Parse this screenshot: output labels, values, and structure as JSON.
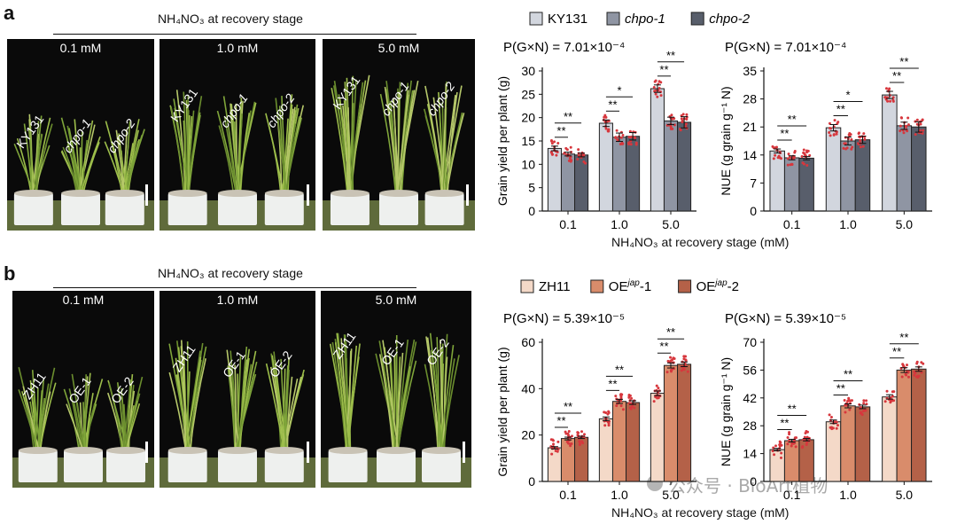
{
  "panels": [
    {
      "letter": "a",
      "header": "NH₄NO₃ at recovery stage",
      "photos": [
        {
          "concentration": "0.1 mM",
          "labels": [
            "KY131",
            "chpo-1",
            "chpo-2"
          ]
        },
        {
          "concentration": "1.0 mM",
          "labels": [
            "KY131",
            "chpo-1",
            "chpo-2"
          ]
        },
        {
          "concentration": "5.0 mM",
          "labels": [
            "KY131",
            "chpo-1",
            "chpo-2"
          ]
        }
      ],
      "legend": [
        "KY131",
        "chpo-1",
        "chpo-2"
      ],
      "legend_italic": [
        false,
        true,
        true
      ],
      "colors": [
        "#d2d6de",
        "#8f95a3",
        "#585e6b"
      ],
      "point_color": "#d7373d",
      "x_axis_label": "NH₄NO₃ at recovery stage (mM)"
    },
    {
      "letter": "b",
      "header": "NH₄NO₃ at recovery stage",
      "photos": [
        {
          "concentration": "0.1 mM",
          "labels": [
            "ZH11",
            "OE-1",
            "OE-2"
          ]
        },
        {
          "concentration": "1.0 mM",
          "labels": [
            "ZH11",
            "OE-1",
            "OE-2"
          ]
        },
        {
          "concentration": "5.0 mM",
          "labels": [
            "ZH11",
            "OE-1",
            "OE-2"
          ]
        }
      ],
      "legend": [
        "ZH11",
        "OE-1",
        "OE-2"
      ],
      "legend_italic": [
        false,
        false,
        false
      ],
      "legend_superscript": [
        "",
        "jap",
        "jap"
      ],
      "colors": [
        "#f4d9c8",
        "#d98c6b",
        "#b46148"
      ],
      "point_color": "#d7373d",
      "x_axis_label": "NH₄NO₃ at recovery stage (mM)"
    }
  ],
  "chart_data": [
    {
      "type": "bar",
      "panel": "a",
      "stat": "P(G×N) = 7.01×10⁻⁴",
      "ylabel": "Grain yield per plant (g)",
      "ylim": [
        0,
        30
      ],
      "yticks": [
        0,
        5,
        10,
        15,
        20,
        25,
        30
      ],
      "categories": [
        "0.1",
        "1.0",
        "5.0"
      ],
      "series": [
        {
          "name": "KY131",
          "values": [
            13.4,
            18.8,
            26.2
          ],
          "errors": [
            0.5,
            0.7,
            0.8
          ]
        },
        {
          "name": "chpo-1",
          "values": [
            12.2,
            15.8,
            19.3
          ],
          "errors": [
            0.4,
            0.9,
            0.8
          ]
        },
        {
          "name": "chpo-2",
          "values": [
            12.0,
            16.0,
            19.0
          ],
          "errors": [
            0.4,
            0.8,
            1.2
          ]
        }
      ],
      "significance": [
        "**",
        "**",
        "**",
        "*",
        "**",
        "**"
      ]
    },
    {
      "type": "bar",
      "panel": "a",
      "stat": "P(G×N) = 7.01×10⁻⁴",
      "ylabel": "NUE (g grain g⁻¹ N)",
      "ylim": [
        0,
        35
      ],
      "yticks": [
        0,
        7,
        14,
        21,
        28,
        35
      ],
      "categories": [
        "0.1",
        "1.0",
        "5.0"
      ],
      "series": [
        {
          "name": "KY131",
          "values": [
            15.0,
            20.8,
            29.0
          ],
          "errors": [
            0.5,
            0.8,
            0.9
          ]
        },
        {
          "name": "chpo-1",
          "values": [
            13.3,
            17.5,
            21.3
          ],
          "errors": [
            0.5,
            1.0,
            0.9
          ]
        },
        {
          "name": "chpo-2",
          "values": [
            13.2,
            17.8,
            21.0
          ],
          "errors": [
            0.4,
            0.9,
            1.3
          ]
        }
      ],
      "significance": [
        "**",
        "**",
        "**",
        "*",
        "**",
        "**"
      ]
    },
    {
      "type": "bar",
      "panel": "b",
      "stat": "P(G×N) = 5.39×10⁻⁵",
      "ylabel": "Grain yield per plant (g)",
      "ylim": [
        0,
        60
      ],
      "yticks": [
        0,
        20,
        40,
        60
      ],
      "categories": [
        "0.1",
        "1.0",
        "5.0"
      ],
      "series": [
        {
          "name": "ZH11",
          "values": [
            14.5,
            27.0,
            38.0
          ],
          "errors": [
            0.5,
            0.8,
            1.0
          ]
        },
        {
          "name": "OE-1",
          "values": [
            18.5,
            34.5,
            50.0
          ],
          "errors": [
            0.6,
            0.9,
            1.1
          ]
        },
        {
          "name": "OE-2",
          "values": [
            19.0,
            34.0,
            50.5
          ],
          "errors": [
            0.5,
            0.8,
            1.0
          ]
        }
      ],
      "significance": [
        "**",
        "**",
        "**",
        "**",
        "**",
        "**"
      ]
    },
    {
      "type": "bar",
      "panel": "b",
      "stat": "P(G×N) = 5.39×10⁻⁵",
      "ylabel": "NUE (g grain g⁻¹ N)",
      "ylim": [
        0,
        70
      ],
      "yticks": [
        0,
        14,
        28,
        42,
        56,
        70
      ],
      "categories": [
        "0.1",
        "1.0",
        "5.0"
      ],
      "series": [
        {
          "name": "ZH11",
          "values": [
            16.0,
            30.0,
            42.5
          ],
          "errors": [
            0.6,
            0.9,
            1.1
          ]
        },
        {
          "name": "OE-1",
          "values": [
            20.5,
            38.0,
            56.0
          ],
          "errors": [
            0.7,
            1.0,
            1.2
          ]
        },
        {
          "name": "OE-2",
          "values": [
            21.0,
            37.5,
            56.5
          ],
          "errors": [
            0.6,
            0.9,
            1.1
          ]
        }
      ],
      "significance": [
        "**",
        "**",
        "**",
        "**",
        "**",
        "**"
      ]
    }
  ],
  "watermark": "公众号 · BioArt植物"
}
